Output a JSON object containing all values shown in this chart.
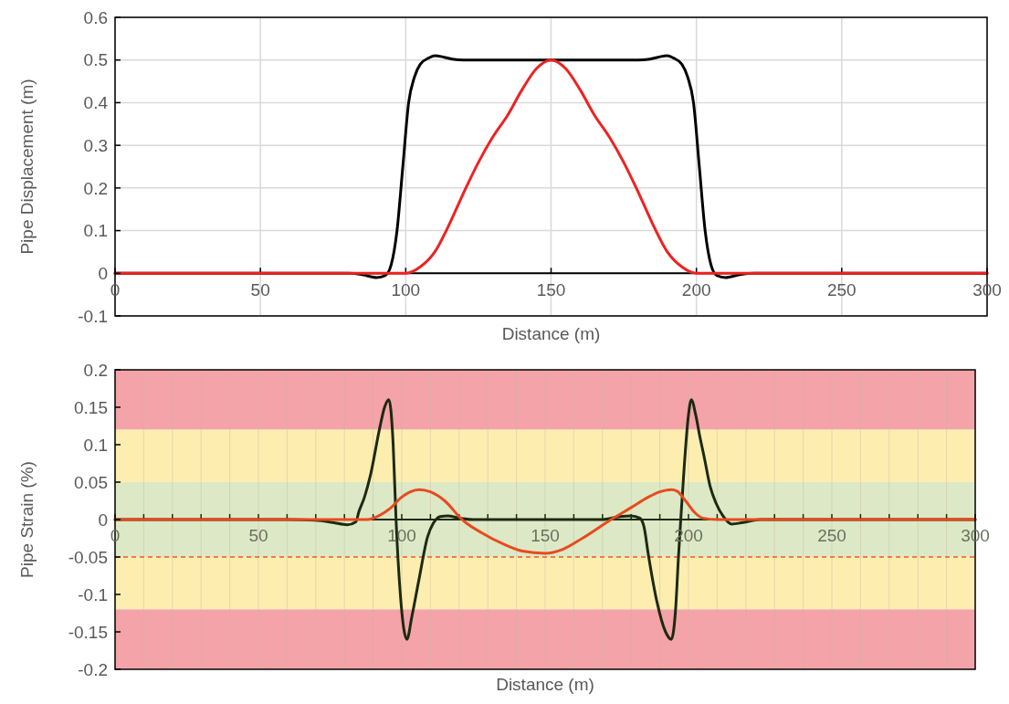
{
  "chart_data": [
    {
      "type": "line",
      "ylabel": "Pipe Displacement (m)",
      "xlabel": "Distance (m)",
      "xlim": [
        0,
        300
      ],
      "ylim": [
        -0.1,
        0.6
      ],
      "xticks": [
        0,
        50,
        100,
        150,
        200,
        250,
        300
      ],
      "yticks": [
        -0.1,
        0,
        0.1,
        0.2,
        0.3,
        0.4,
        0.5,
        0.6
      ],
      "grid": true,
      "series": [
        {
          "color": "#000000",
          "x": [
            0,
            50,
            80,
            85,
            90,
            93,
            95,
            97,
            99,
            101,
            103,
            105,
            108,
            110,
            113,
            116,
            120,
            130,
            150,
            170,
            180,
            184,
            187,
            190,
            192,
            195,
            197,
            199,
            201,
            203,
            205,
            207,
            210,
            215,
            220,
            250,
            300
          ],
          "values": [
            0,
            0,
            0,
            -0.003,
            -0.01,
            -0.005,
            0.02,
            0.1,
            0.25,
            0.4,
            0.46,
            0.49,
            0.505,
            0.51,
            0.507,
            0.502,
            0.5,
            0.5,
            0.5,
            0.5,
            0.5,
            0.502,
            0.507,
            0.51,
            0.505,
            0.49,
            0.46,
            0.4,
            0.25,
            0.1,
            0.02,
            -0.005,
            -0.01,
            -0.003,
            0,
            0,
            0
          ]
        },
        {
          "color": "#ee2222",
          "x": [
            0,
            50,
            90,
            95,
            100,
            105,
            110,
            115,
            120,
            125,
            130,
            135,
            140,
            145,
            150,
            155,
            160,
            165,
            170,
            175,
            180,
            185,
            190,
            195,
            200,
            205,
            210,
            250,
            300
          ],
          "values": [
            0,
            0,
            0,
            0,
            0,
            0.015,
            0.05,
            0.115,
            0.19,
            0.26,
            0.32,
            0.37,
            0.43,
            0.48,
            0.5,
            0.48,
            0.43,
            0.37,
            0.32,
            0.26,
            0.19,
            0.115,
            0.05,
            0.015,
            0,
            0,
            0,
            0,
            0
          ]
        }
      ]
    },
    {
      "type": "line",
      "ylabel": "Pipe Strain (%)",
      "xlabel": "Distance (m)",
      "xlim": [
        0,
        300
      ],
      "ylim": [
        -0.2,
        0.2
      ],
      "xticks": [
        0,
        {
          "value": 10,
          "label": null
        },
        {
          "value": 20,
          "label": null
        },
        {
          "value": 30,
          "label": null
        },
        {
          "value": 40,
          "label": null
        },
        50,
        {
          "value": 60,
          "label": null
        },
        {
          "value": 70,
          "label": null
        },
        {
          "value": 80,
          "label": null
        },
        {
          "value": 90,
          "label": null
        },
        100,
        {
          "value": 110,
          "label": null
        },
        {
          "value": 120,
          "label": null
        },
        {
          "value": 130,
          "label": null
        },
        {
          "value": 140,
          "label": null
        },
        150,
        {
          "value": 160,
          "label": null
        },
        {
          "value": 170,
          "label": null
        },
        {
          "value": 180,
          "label": null
        },
        {
          "value": 190,
          "label": null
        },
        200,
        {
          "value": 210,
          "label": null
        },
        {
          "value": 220,
          "label": null
        },
        {
          "value": 230,
          "label": null
        },
        {
          "value": 240,
          "label": null
        },
        250,
        {
          "value": 260,
          "label": null
        },
        {
          "value": 270,
          "label": null
        },
        {
          "value": 280,
          "label": null
        },
        {
          "value": 290,
          "label": null
        },
        300
      ],
      "yticks": [
        -0.2,
        -0.15,
        -0.1,
        -0.05,
        0,
        0.05,
        0.1,
        0.15,
        0.2
      ],
      "grid": "x",
      "bands": [
        {
          "axis": "y",
          "from": 0.12,
          "to": 0.2,
          "color": "#f4a3a8"
        },
        {
          "axis": "y",
          "from": 0.05,
          "to": 0.12,
          "color": "#fdeeb0"
        },
        {
          "axis": "y",
          "from": -0.05,
          "to": 0.05,
          "color": "#dde9c6"
        },
        {
          "axis": "y",
          "from": -0.12,
          "to": -0.05,
          "color": "#fdeeb0"
        },
        {
          "axis": "y",
          "from": -0.2,
          "to": -0.12,
          "color": "#f4a3a8"
        }
      ],
      "ref_lines": [
        {
          "axis": "y",
          "value": -0.05,
          "color": "#ee5a22",
          "line_style": "dashed"
        }
      ],
      "series": [
        {
          "color": "#1c2a10",
          "x": [
            0,
            60,
            70,
            76,
            81,
            84,
            85,
            87,
            89,
            92.4,
            94,
            95.5,
            97,
            98,
            99.5,
            101.8,
            103.5,
            106,
            109,
            111,
            113.4,
            116,
            120,
            125,
            170,
            176,
            180,
            183,
            184.5,
            186,
            189,
            192,
            194,
            195.5,
            196.5,
            197.3,
            198.5,
            200,
            201,
            202.5,
            204,
            205.5,
            207.5,
            209.6,
            212,
            215,
            219,
            225,
            300
          ],
          "values": [
            0,
            0,
            -0.001,
            -0.004,
            -0.007,
            -0.003,
            0.01,
            0.03,
            0.058,
            0.124,
            0.15,
            0.16,
            0.1,
            0,
            -0.1,
            -0.16,
            -0.13,
            -0.08,
            -0.023,
            -0.005,
            0.004,
            0.005,
            0.002,
            0,
            0,
            0.004,
            0.005,
            0.002,
            -0.01,
            -0.047,
            -0.11,
            -0.15,
            -0.16,
            -0.12,
            -0.05,
            0,
            0.07,
            0.14,
            0.16,
            0.14,
            0.11,
            0.083,
            0.045,
            0.022,
            0.005,
            -0.006,
            -0.004,
            0,
            0
          ]
        },
        {
          "color": "#e84a1e",
          "x": [
            0,
            80,
            88,
            92,
            96,
            100,
            103,
            106,
            110,
            115,
            121,
            128,
            135,
            142,
            150,
            156,
            163,
            173,
            180,
            186,
            190,
            194,
            196,
            199,
            202,
            205,
            210,
            300
          ],
          "values": [
            0,
            0,
            0,
            0.005,
            0.015,
            0.03,
            0.037,
            0.04,
            0.037,
            0.025,
            0,
            -0.018,
            -0.032,
            -0.042,
            -0.045,
            -0.04,
            -0.025,
            0,
            0.016,
            0.03,
            0.037,
            0.04,
            0.038,
            0.025,
            0.01,
            0.002,
            0,
            0
          ]
        }
      ]
    }
  ]
}
